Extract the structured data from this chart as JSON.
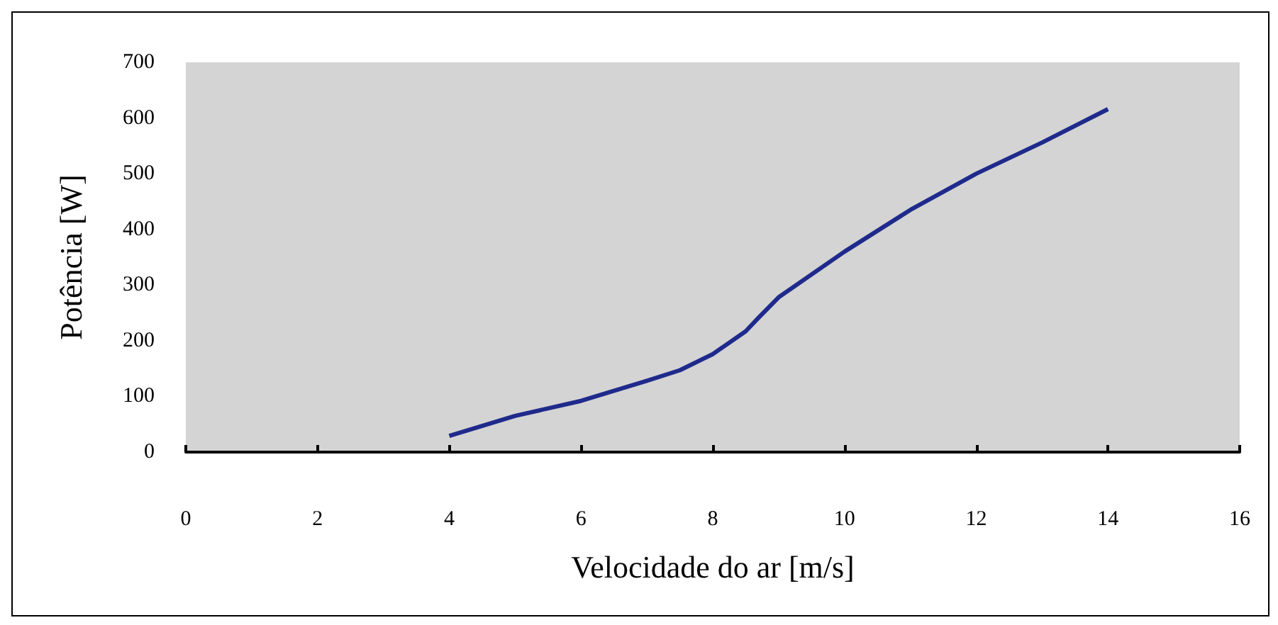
{
  "chart_data": {
    "type": "line",
    "xlabel": "Velocidade do ar [m/s]",
    "ylabel": "Potência [W]",
    "x": [
      4,
      5,
      6,
      7,
      7.5,
      8,
      8.5,
      8.7,
      9,
      10,
      11,
      12,
      13,
      14
    ],
    "series": [
      {
        "color": "#1f2a8c",
        "values": [
          29,
          65,
          92,
          128,
          147,
          176,
          217,
          242,
          278,
          360,
          435,
          500,
          556,
          616
        ]
      }
    ],
    "xlim": [
      0,
      16
    ],
    "xticks": [
      0,
      2,
      4,
      6,
      8,
      10,
      12,
      14,
      16
    ],
    "ylim": [
      0,
      700
    ],
    "yticks": [
      0,
      100,
      200,
      300,
      400,
      500,
      600,
      700
    ],
    "grid": false,
    "marker": "none",
    "line_style": "solid"
  }
}
